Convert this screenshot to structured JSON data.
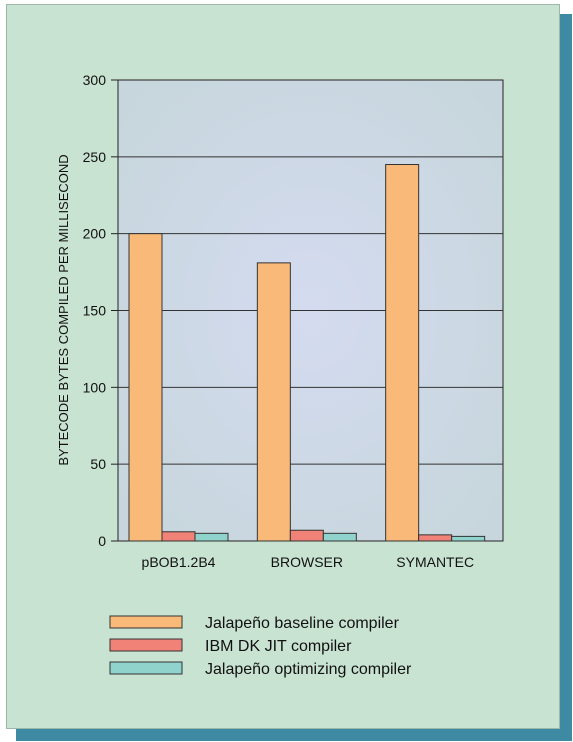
{
  "chart_data": {
    "type": "bar",
    "title": "",
    "xlabel": "",
    "ylabel": "BYTECODE BYTES COMPILED PER MILLISECOND",
    "ylim": [
      0,
      300
    ],
    "yticks": [
      0,
      50,
      100,
      150,
      200,
      250,
      300
    ],
    "grid": true,
    "legend_position": "bottom",
    "categories": [
      "pBOB1.2B4",
      "BROWSER",
      "SYMANTEC"
    ],
    "series": [
      {
        "name": "Jalapeño baseline compiler",
        "color": "#f9b978",
        "values": [
          200,
          181,
          245
        ]
      },
      {
        "name": "IBM DK JIT compiler",
        "color": "#f08277",
        "values": [
          6,
          7,
          4
        ]
      },
      {
        "name": "Jalapeño optimizing compiler",
        "color": "#8fd3cc",
        "values": [
          5,
          5,
          3
        ]
      }
    ]
  }
}
